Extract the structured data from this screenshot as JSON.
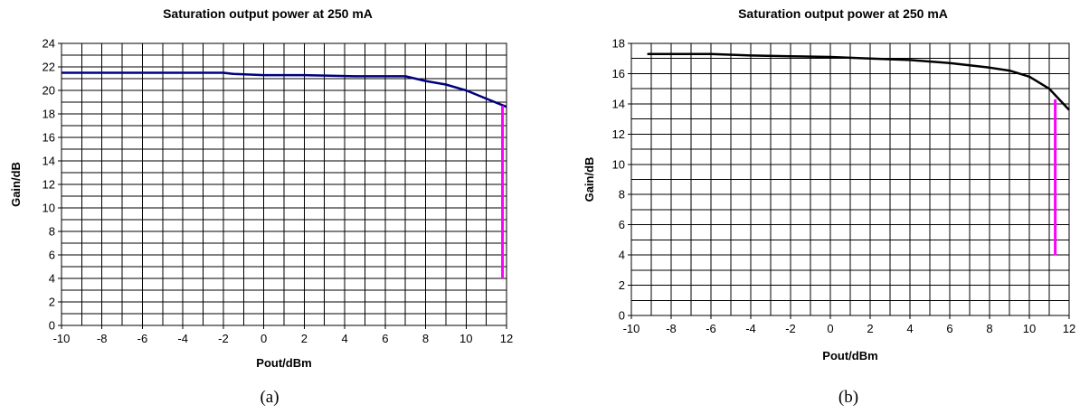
{
  "chart_data": [
    {
      "type": "line",
      "title": "Saturation output power at 250 mA",
      "xlabel": "Pout/dBm",
      "ylabel": "Gain/dB",
      "caption": "(a)",
      "xlim": [
        -10,
        12
      ],
      "ylim": [
        0,
        24
      ],
      "xticks": [
        -10,
        -8,
        -6,
        -4,
        -2,
        0,
        2,
        4,
        6,
        8,
        10,
        12
      ],
      "yticks": [
        0,
        2,
        4,
        6,
        8,
        10,
        12,
        14,
        16,
        18,
        20,
        22,
        24
      ],
      "grid": true,
      "series": [
        {
          "color": "#000080",
          "x": [
            -10,
            -6,
            -2,
            -1.5,
            0,
            2,
            4.5,
            6,
            7,
            8,
            9,
            10,
            11,
            12
          ],
          "y": [
            21.5,
            21.5,
            21.5,
            21.4,
            21.3,
            21.3,
            21.2,
            21.2,
            21.2,
            20.8,
            20.5,
            20.0,
            19.3,
            18.6
          ]
        }
      ],
      "marker": {
        "color": "#ff00ff",
        "x": 11.8,
        "y_from": 4,
        "y_to": 18.7
      }
    },
    {
      "type": "line",
      "title": "Saturation output power at 250 mA",
      "xlabel": "Pout/dBm",
      "ylabel": "Gain/dB",
      "caption": "(b)",
      "xlim": [
        -10,
        12
      ],
      "ylim": [
        0,
        18
      ],
      "xticks": [
        -10,
        -8,
        -6,
        -4,
        -2,
        0,
        2,
        4,
        6,
        8,
        10,
        12
      ],
      "yticks": [
        0,
        2,
        4,
        6,
        8,
        10,
        12,
        14,
        16,
        18
      ],
      "grid": true,
      "series": [
        {
          "color": "#000000",
          "x": [
            -9.2,
            -6,
            -4,
            -2,
            0,
            2,
            4,
            6,
            8,
            9,
            10,
            11,
            12
          ],
          "y": [
            17.3,
            17.3,
            17.2,
            17.15,
            17.1,
            17.0,
            16.9,
            16.7,
            16.4,
            16.2,
            15.8,
            15.0,
            13.6
          ]
        }
      ],
      "marker": {
        "color": "#ff00ff",
        "x": 11.3,
        "y_from": 4,
        "y_to": 14.3
      }
    }
  ]
}
